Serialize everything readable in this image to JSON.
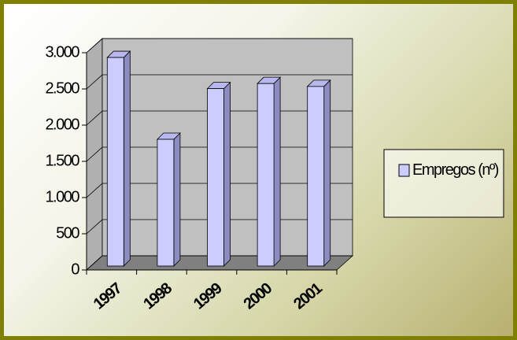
{
  "chart_data": {
    "type": "bar",
    "categories": [
      "1997",
      "1998",
      "1999",
      "2000",
      "2001"
    ],
    "series": [
      {
        "name": "Empregos (nº)",
        "color": "#ccccff",
        "values": [
          2880,
          1750,
          2450,
          2520,
          2480
        ]
      }
    ],
    "ylim": [
      0,
      3000
    ],
    "yticks": [
      0,
      500,
      {
        "value": 1000,
        "label": "1.000"
      },
      {
        "value": 1500,
        "label": "1.500"
      },
      {
        "value": 2000,
        "label": "2.000"
      },
      {
        "value": 2500,
        "label": "2.500"
      },
      {
        "value": 3000,
        "label": "3.000"
      }
    ],
    "grid": true,
    "legend": "right"
  }
}
